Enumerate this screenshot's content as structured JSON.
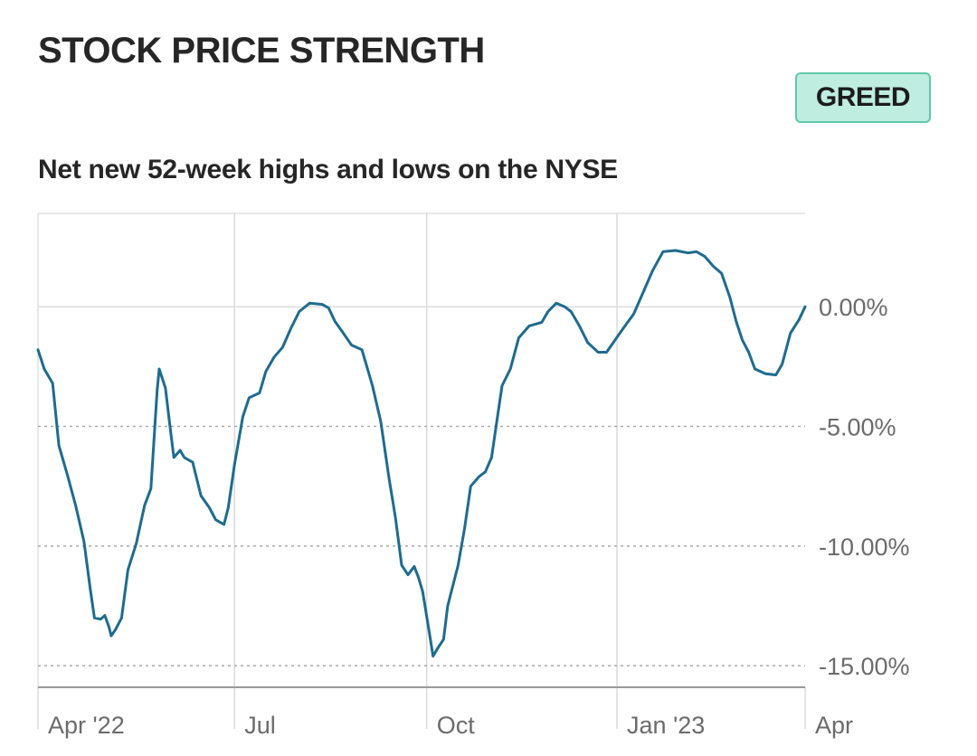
{
  "header": {
    "title": "STOCK PRICE STRENGTH",
    "sentiment_badge": "GREED"
  },
  "colors": {
    "line": "#1f6b8e",
    "badge_bg": "#bfeee0",
    "badge_border": "#5fc9a8",
    "grid": "#c8c8c8",
    "axis": "#999999",
    "text": "#262626",
    "tick_text": "#6b6b6b"
  },
  "chart_data": {
    "type": "line",
    "title": "Net new 52-week highs and lows on the NYSE",
    "xlabel": "",
    "ylabel": "",
    "y_unit": "%",
    "ylim": [
      -15.9,
      3.9
    ],
    "xlim": [
      "2022-03-29",
      "2023-03-31"
    ],
    "grid": true,
    "y_ticks": [
      {
        "value": 0,
        "label": "0.00%"
      },
      {
        "value": -5,
        "label": "-5.00%"
      },
      {
        "value": -10,
        "label": "-10.00%"
      },
      {
        "value": -15,
        "label": "-15.00%"
      }
    ],
    "x_ticks": [
      {
        "value": "2022-03-29",
        "label": "Apr '22"
      },
      {
        "value": "2022-07-01",
        "label": "Jul"
      },
      {
        "value": "2022-10-01",
        "label": "Oct"
      },
      {
        "value": "2022-12-31",
        "label": "Jan '23"
      },
      {
        "value": "2023-03-31",
        "label": "Apr"
      }
    ],
    "series": [
      {
        "values": [
          [
            "2022-03-29",
            -1.8
          ],
          [
            "2022-04-01",
            -2.6
          ],
          [
            "2022-04-05",
            -3.2
          ],
          [
            "2022-04-08",
            -5.8
          ],
          [
            "2022-04-12",
            -7.0
          ],
          [
            "2022-04-16",
            -8.3
          ],
          [
            "2022-04-20",
            -9.8
          ],
          [
            "2022-04-23",
            -11.8
          ],
          [
            "2022-04-25",
            -13.0
          ],
          [
            "2022-04-28",
            -13.05
          ],
          [
            "2022-04-30",
            -12.9
          ],
          [
            "2022-05-02",
            -13.4
          ],
          [
            "2022-05-03",
            -13.75
          ],
          [
            "2022-05-05",
            -13.5
          ],
          [
            "2022-05-08",
            -13.0
          ],
          [
            "2022-05-11",
            -11.0
          ],
          [
            "2022-05-15",
            -9.9
          ],
          [
            "2022-05-19",
            -8.3
          ],
          [
            "2022-05-22",
            -7.6
          ],
          [
            "2022-05-25",
            -3.5
          ],
          [
            "2022-05-26",
            -2.6
          ],
          [
            "2022-05-29",
            -3.4
          ],
          [
            "2022-05-31",
            -4.9
          ],
          [
            "2022-06-02",
            -6.3
          ],
          [
            "2022-06-05",
            -6.0
          ],
          [
            "2022-06-07",
            -6.3
          ],
          [
            "2022-06-11",
            -6.5
          ],
          [
            "2022-06-13",
            -7.2
          ],
          [
            "2022-06-15",
            -7.9
          ],
          [
            "2022-06-19",
            -8.4
          ],
          [
            "2022-06-22",
            -8.9
          ],
          [
            "2022-06-26",
            -9.1
          ],
          [
            "2022-06-28",
            -8.4
          ],
          [
            "2022-07-01",
            -6.6
          ],
          [
            "2022-07-05",
            -4.6
          ],
          [
            "2022-07-08",
            -3.8
          ],
          [
            "2022-07-13",
            -3.6
          ],
          [
            "2022-07-16",
            -2.7
          ],
          [
            "2022-07-20",
            -2.1
          ],
          [
            "2022-07-24",
            -1.7
          ],
          [
            "2022-07-28",
            -0.9
          ],
          [
            "2022-08-01",
            -0.2
          ],
          [
            "2022-08-06",
            0.15
          ],
          [
            "2022-08-12",
            0.1
          ],
          [
            "2022-08-15",
            -0.05
          ],
          [
            "2022-08-18",
            -0.6
          ],
          [
            "2022-08-22",
            -1.1
          ],
          [
            "2022-08-26",
            -1.6
          ],
          [
            "2022-08-31",
            -1.8
          ],
          [
            "2022-09-05",
            -3.3
          ],
          [
            "2022-09-09",
            -4.8
          ],
          [
            "2022-09-13",
            -7.2
          ],
          [
            "2022-09-16",
            -8.8
          ],
          [
            "2022-09-19",
            -10.8
          ],
          [
            "2022-09-22",
            -11.2
          ],
          [
            "2022-09-25",
            -10.85
          ],
          [
            "2022-09-27",
            -11.3
          ],
          [
            "2022-09-29",
            -11.9
          ],
          [
            "2022-10-02",
            -13.5
          ],
          [
            "2022-10-04",
            -14.6
          ],
          [
            "2022-10-06",
            -14.3
          ],
          [
            "2022-10-09",
            -13.9
          ],
          [
            "2022-10-11",
            -12.5
          ],
          [
            "2022-10-16",
            -10.8
          ],
          [
            "2022-10-19",
            -9.3
          ],
          [
            "2022-10-22",
            -7.5
          ],
          [
            "2022-10-26",
            -7.1
          ],
          [
            "2022-10-29",
            -6.9
          ],
          [
            "2022-11-01",
            -6.3
          ],
          [
            "2022-11-04",
            -4.5
          ],
          [
            "2022-11-06",
            -3.3
          ],
          [
            "2022-11-10",
            -2.6
          ],
          [
            "2022-11-14",
            -1.3
          ],
          [
            "2022-11-19",
            -0.8
          ],
          [
            "2022-11-25",
            -0.65
          ],
          [
            "2022-11-28",
            -0.2
          ],
          [
            "2022-12-02",
            0.15
          ],
          [
            "2022-12-06",
            0.0
          ],
          [
            "2022-12-09",
            -0.2
          ],
          [
            "2022-12-13",
            -0.8
          ],
          [
            "2022-12-17",
            -1.5
          ],
          [
            "2022-12-22",
            -1.9
          ],
          [
            "2022-12-26",
            -1.9
          ],
          [
            "2022-12-30",
            -1.4
          ],
          [
            "2023-01-03",
            -0.9
          ],
          [
            "2023-01-08",
            -0.3
          ],
          [
            "2023-01-12",
            0.5
          ],
          [
            "2023-01-17",
            1.5
          ],
          [
            "2023-01-22",
            2.3
          ],
          [
            "2023-01-28",
            2.35
          ],
          [
            "2023-02-03",
            2.25
          ],
          [
            "2023-02-07",
            2.3
          ],
          [
            "2023-02-11",
            2.1
          ],
          [
            "2023-02-15",
            1.7
          ],
          [
            "2023-02-19",
            1.4
          ],
          [
            "2023-02-23",
            0.4
          ],
          [
            "2023-02-26",
            -0.6
          ],
          [
            "2023-03-01",
            -1.4
          ],
          [
            "2023-03-04",
            -1.9
          ],
          [
            "2023-03-07",
            -2.6
          ],
          [
            "2023-03-12",
            -2.8
          ],
          [
            "2023-03-17",
            -2.85
          ],
          [
            "2023-03-20",
            -2.4
          ],
          [
            "2023-03-24",
            -1.1
          ],
          [
            "2023-03-28",
            -0.55
          ],
          [
            "2023-03-31",
            0.0
          ]
        ]
      }
    ]
  }
}
